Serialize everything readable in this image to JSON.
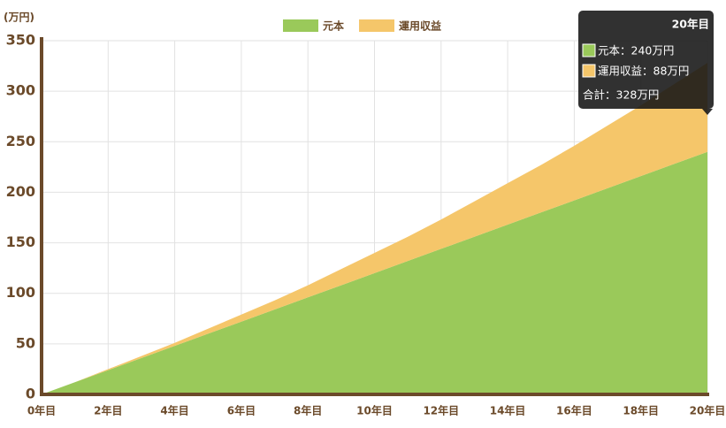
{
  "chart_data": {
    "type": "stacked-area",
    "y_unit": "(万円)",
    "categories": [
      "0年目",
      null,
      "2年目",
      null,
      "4年目",
      null,
      "6年目",
      null,
      "8年目",
      null,
      "10年目",
      null,
      "12年目",
      null,
      "14年目",
      null,
      "16年目",
      null,
      "18年目",
      null,
      "20年目"
    ],
    "series": [
      {
        "name": "元本",
        "color": "#9ac95a",
        "values": [
          0,
          12,
          24,
          36,
          48,
          60,
          72,
          84,
          96,
          108,
          120,
          132,
          144,
          156,
          168,
          180,
          192,
          204,
          216,
          228,
          240
        ]
      },
      {
        "name": "運用収益",
        "color": "#f5c66a",
        "values": [
          0,
          0,
          1,
          2,
          3,
          5,
          7,
          9,
          12,
          16,
          20,
          24,
          29,
          35,
          41,
          47,
          54,
          62,
          70,
          79,
          88
        ]
      }
    ],
    "ylim": [
      0,
      350
    ],
    "yticks": [
      0,
      50,
      100,
      150,
      200,
      250,
      300,
      350
    ],
    "grid": true,
    "legend": "top",
    "tooltip": {
      "index": 20,
      "lines": [
        "元本：240万円",
        "運用収益：88万円"
      ],
      "total": "合計：328万円"
    }
  }
}
